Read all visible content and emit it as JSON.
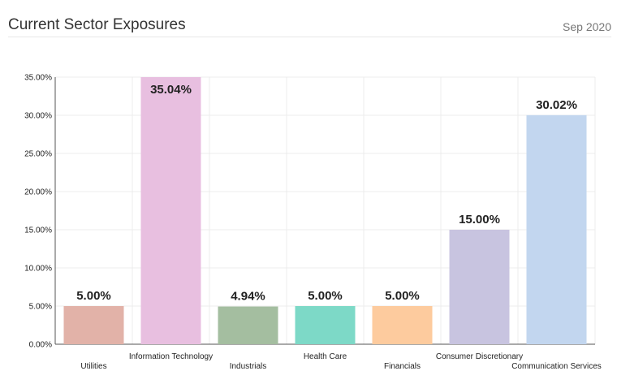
{
  "header": {
    "title": "Current Sector Exposures",
    "date": "Sep 2020"
  },
  "chart_data": {
    "type": "bar",
    "title": "",
    "xlabel": "",
    "ylabel": "",
    "ylim": [
      0,
      35
    ],
    "yticks": [
      "0.00%",
      "5.00%",
      "10.00%",
      "15.00%",
      "20.00%",
      "25.00%",
      "30.00%",
      "35.00%"
    ],
    "grid": true,
    "categories": [
      "Utilities",
      "Information Technology",
      "Industrials",
      "Health Care",
      "Financials",
      "Consumer Discretionary",
      "Communication Services"
    ],
    "values": [
      5.0,
      35.04,
      4.94,
      5.0,
      5.0,
      15.0,
      30.02
    ],
    "data_labels": [
      "5.00%",
      "35.04%",
      "4.94%",
      "5.00%",
      "5.00%",
      "15.00%",
      "30.02%"
    ],
    "colors": [
      "#e2b2a8",
      "#e8bfe0",
      "#a4bea0",
      "#7dd9c7",
      "#fdcb9e",
      "#c8c4e0",
      "#c2d6ef"
    ]
  }
}
